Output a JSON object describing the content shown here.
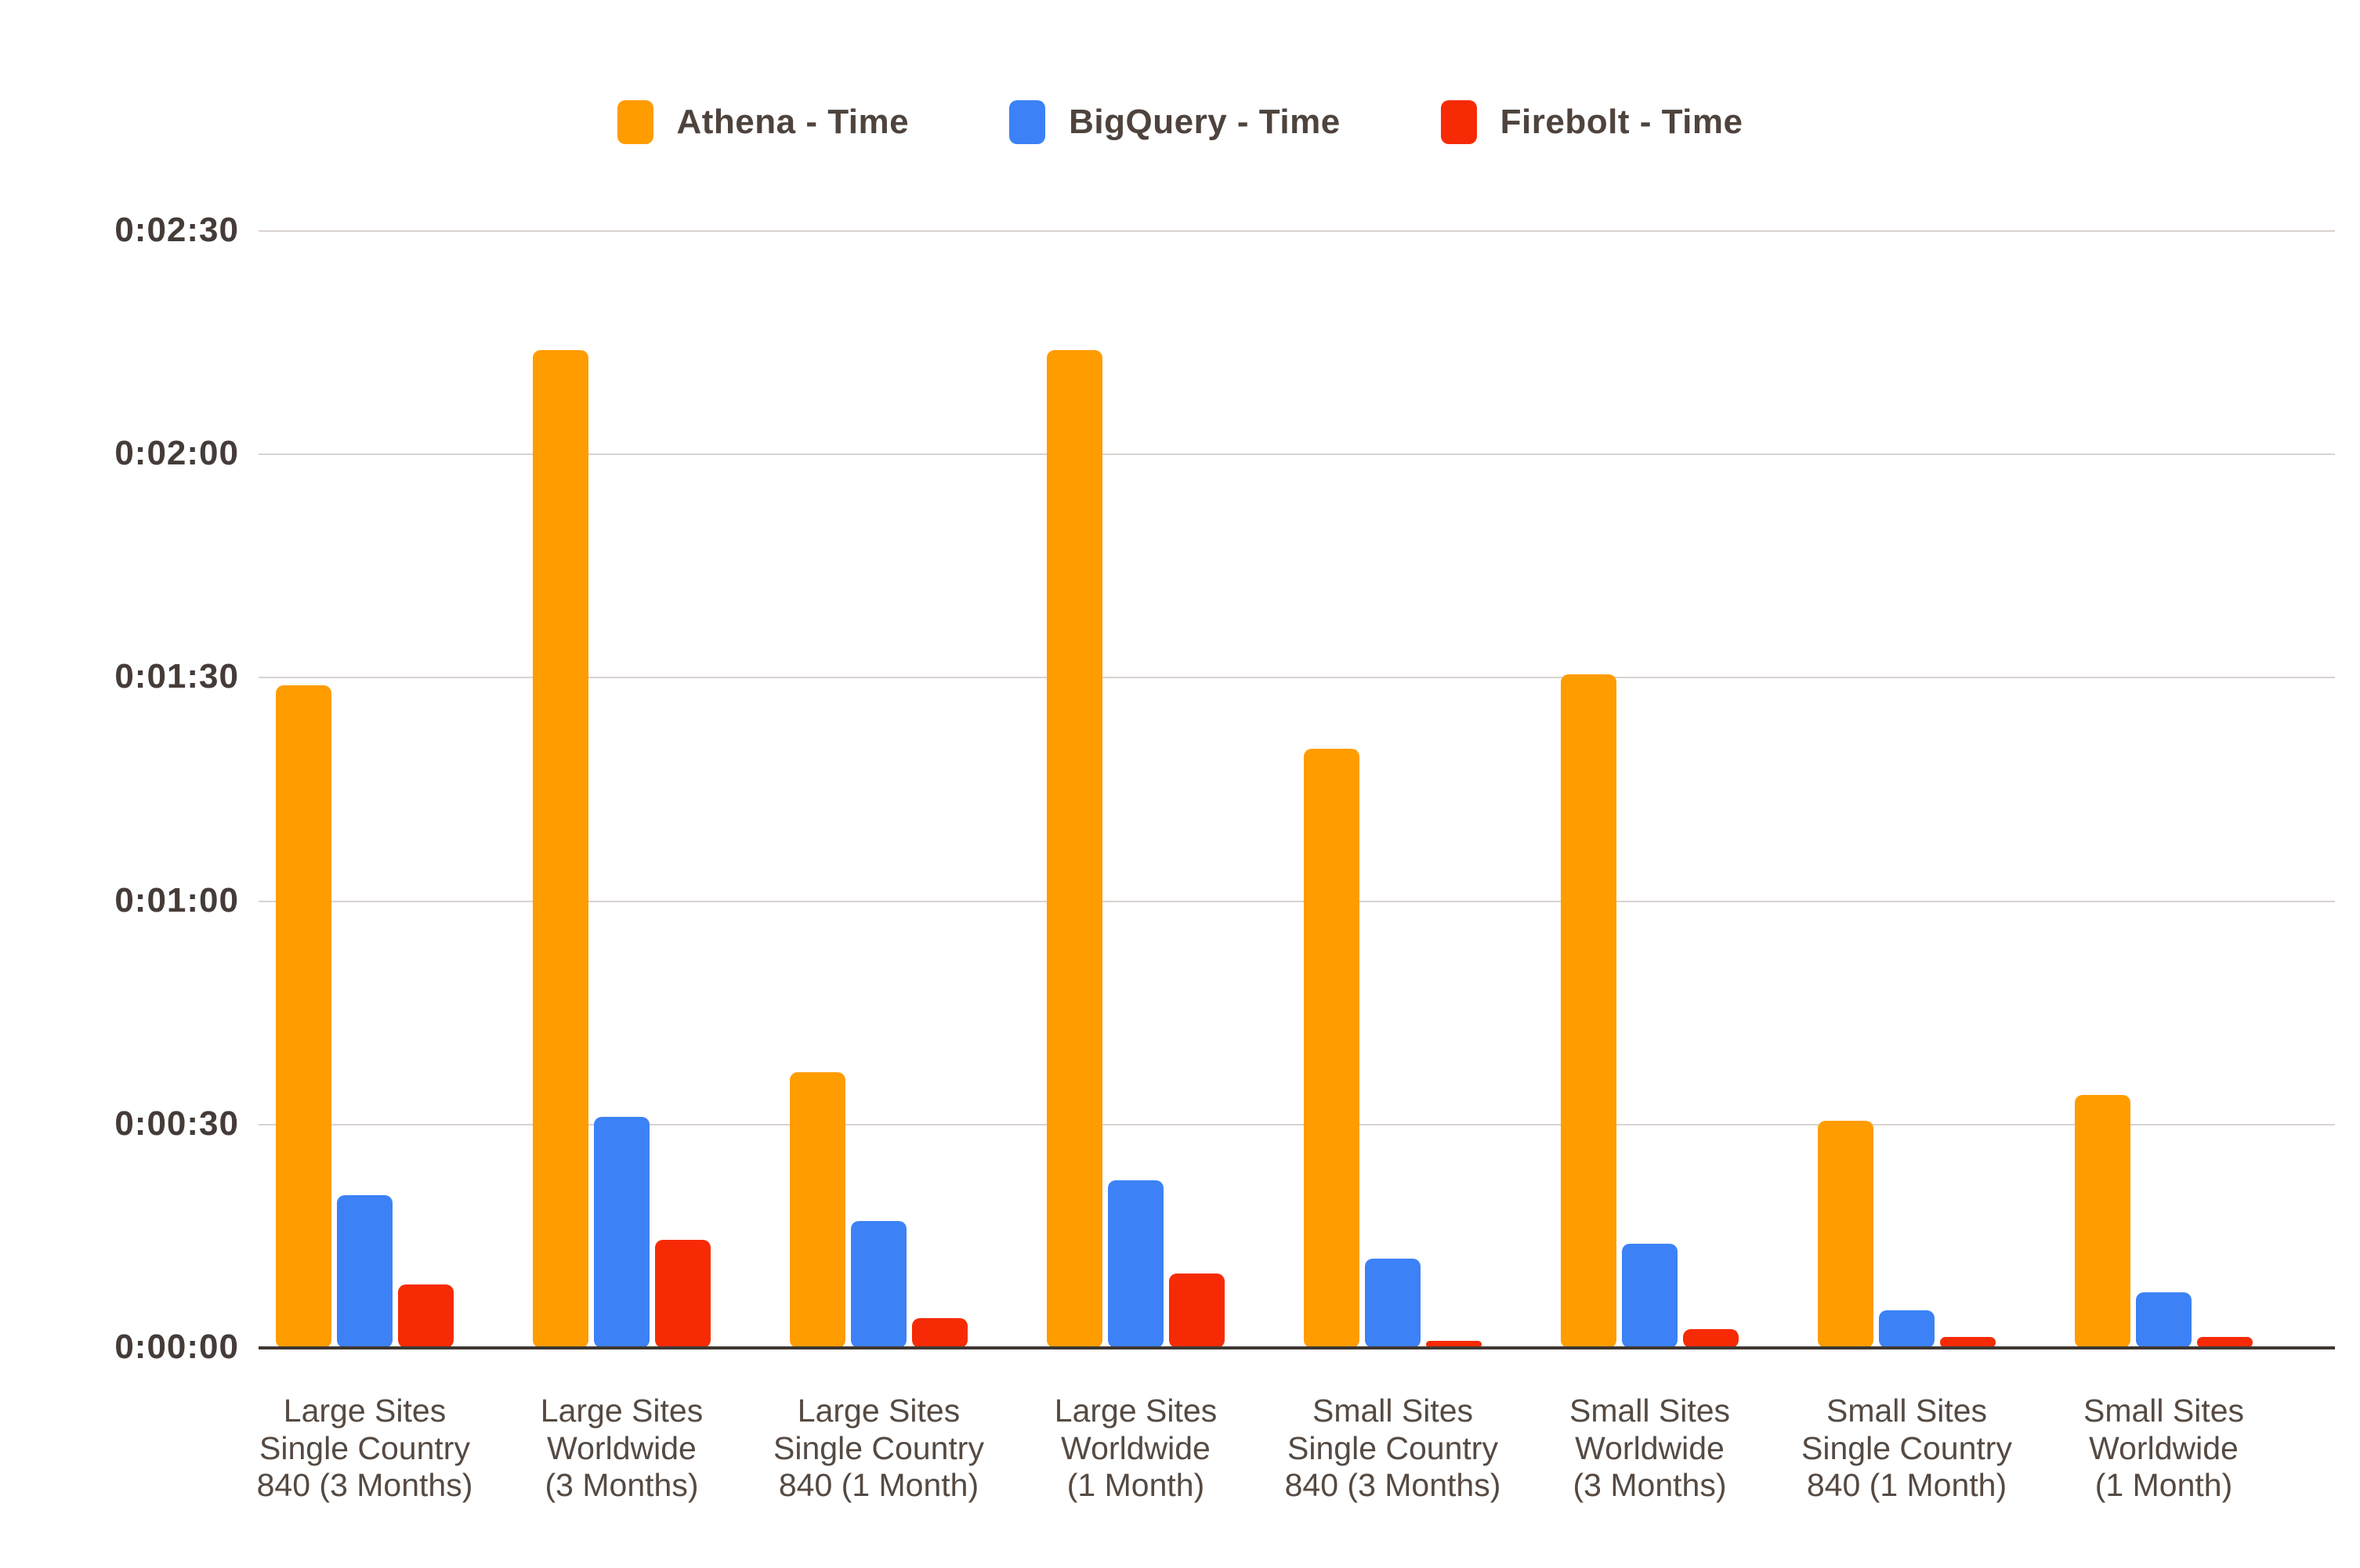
{
  "legend": {
    "position": "top",
    "items": [
      {
        "label": "Athena - Time",
        "color": "#FF9C00"
      },
      {
        "label": "BigQuery - Time",
        "color": "#3C82F6"
      },
      {
        "label": "Firebolt - Time",
        "color": "#F62B05"
      }
    ]
  },
  "y_axis": {
    "ticks": [
      {
        "label": "0:00:00",
        "seconds": 0
      },
      {
        "label": "0:00:30",
        "seconds": 30
      },
      {
        "label": "0:01:00",
        "seconds": 60
      },
      {
        "label": "0:01:30",
        "seconds": 90
      },
      {
        "label": "0:02:00",
        "seconds": 120
      },
      {
        "label": "0:02:30",
        "seconds": 150
      }
    ],
    "max_seconds": 150
  },
  "chart_data": {
    "type": "bar",
    "title": "",
    "unit": "seconds (y-axis formatted h:mm:ss)",
    "ylim": [
      0,
      150
    ],
    "grid": true,
    "legend_position": "top",
    "categories": [
      "Large Sites Single Country 840 (3 Months)",
      "Large Sites Worldwide (3 Months)",
      "Large Sites Single Country 840 (1 Month)",
      "Large Sites Worldwide (1 Month)",
      "Small Sites Single Country 840 (3 Months)",
      "Small Sites Worldwide (3 Months)",
      "Small Sites Single Country 840 (1 Month)",
      "Small Sites Worldwide (1 Month)"
    ],
    "category_lines": [
      [
        "Large Sites",
        "Single Country",
        "840 (3 Months)"
      ],
      [
        "Large Sites",
        "Worldwide",
        "(3 Months)"
      ],
      [
        "Large Sites",
        "Single Country",
        "840 (1 Month)"
      ],
      [
        "Large Sites",
        "Worldwide",
        "(1 Month)"
      ],
      [
        "Small Sites",
        "Single Country",
        "840 (3 Months)"
      ],
      [
        "Small Sites",
        "Worldwide",
        "(3 Months)"
      ],
      [
        "Small Sites",
        "Single Country",
        "840 (1 Month)"
      ],
      [
        "Small Sites",
        "Worldwide",
        "(1 Month)"
      ]
    ],
    "series": [
      {
        "name": "Athena - Time",
        "color": "#FF9C00",
        "values": [
          89,
          134,
          37,
          134,
          80.5,
          90.5,
          30.5,
          34
        ]
      },
      {
        "name": "BigQuery - Time",
        "color": "#3C82F6",
        "values": [
          20.5,
          31,
          17,
          22.5,
          12,
          14,
          5,
          7.5
        ]
      },
      {
        "name": "Firebolt - Time",
        "color": "#F62B05",
        "values": [
          8.5,
          14.5,
          4,
          10,
          1,
          2.5,
          1.5,
          1.5
        ]
      }
    ]
  }
}
